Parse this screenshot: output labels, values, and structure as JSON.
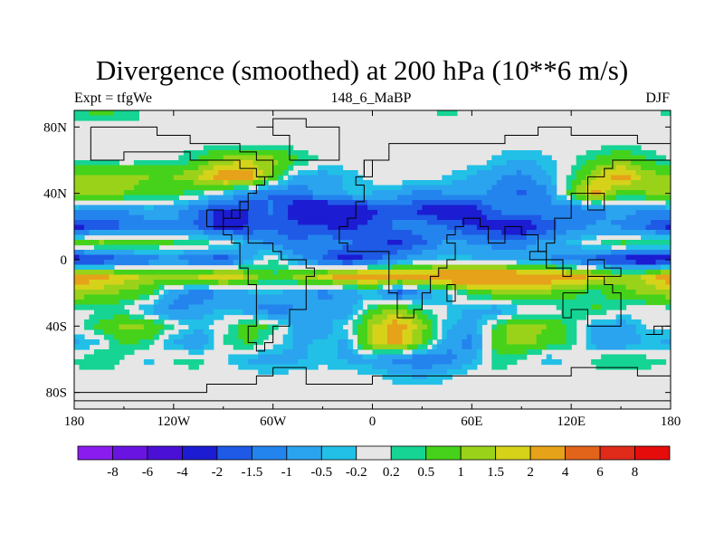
{
  "chart_data": {
    "type": "heatmap",
    "title": "Divergence (smoothed) at 200 hPa (10**6 m/s)",
    "subtitle_left": "Expt = tfgWe",
    "subtitle_center": "148_6_MaBP",
    "subtitle_right": "DJF",
    "x_ticks": [
      "180",
      "120W",
      "60W",
      "0",
      "60E",
      "120E",
      "180"
    ],
    "x_tick_values": [
      -180,
      -120,
      -60,
      0,
      60,
      120,
      180
    ],
    "y_ticks": [
      "80N",
      "40N",
      "0",
      "40S",
      "80S"
    ],
    "y_tick_values": [
      80,
      40,
      0,
      -40,
      -80
    ],
    "xlim": [
      -180,
      180
    ],
    "ylim": [
      -90,
      90
    ],
    "colorbar_labels": [
      "-8",
      "-6",
      "-4",
      "-2",
      "-1.5",
      "-1",
      "-0.5",
      "-0.2",
      "0.2",
      "0.5",
      "1",
      "1.5",
      "2",
      "4",
      "6",
      "8"
    ],
    "colorbar_boundaries": [
      -8,
      -6,
      -4,
      -2,
      -1.5,
      -1,
      -0.5,
      -0.2,
      0.2,
      0.5,
      1,
      1.5,
      2,
      4,
      6,
      8
    ],
    "colorbar_colors": [
      "#8a1cf0",
      "#6a14e2",
      "#4a10d6",
      "#1c1cd2",
      "#1e5ae6",
      "#2484ee",
      "#2aa4ee",
      "#22c0e6",
      "#e6e6e6",
      "#16d494",
      "#46d21a",
      "#9ad21a",
      "#d6d21a",
      "#e6a218",
      "#e2641a",
      "#e02a1a",
      "#e60c0c"
    ],
    "rows_lat_step_deg": 10,
    "rows_lon_step_deg": 15,
    "values_north_to_south": [
      [
        0.3,
        0.8,
        0.4,
        0.1,
        -0.2,
        0.1,
        0.2,
        0.1,
        0.0,
        0.1,
        0.2,
        0.1,
        0.0,
        -0.1,
        0.1,
        0.3,
        0.1,
        -0.1,
        0.0,
        0.1,
        0.2,
        0.1,
        0.0,
        0.1,
        0.3
      ],
      [
        0.1,
        0.0,
        0.1,
        0.2,
        0.1,
        0.0,
        0.1,
        0.0,
        0.1,
        0.0,
        0.1,
        0.0,
        0.1,
        0.0,
        0.1,
        0.0,
        0.1,
        0.0,
        0.1,
        0.0,
        0.1,
        0.0,
        0.1,
        0.0,
        0.1
      ],
      [
        0.0,
        0.1,
        0.0,
        -0.1,
        0.1,
        0.0,
        0.1,
        0.0,
        0.1,
        0.0,
        -0.1,
        0.0,
        0.1,
        0.0,
        -0.1,
        0.0,
        0.1,
        0.0,
        0.1,
        0.0,
        -0.1,
        0.0,
        0.1,
        0.0,
        0.0
      ],
      [
        0.1,
        0.1,
        0.0,
        0.1,
        0.1,
        0.6,
        1.2,
        1.5,
        1.2,
        0.6,
        0.1,
        0.0,
        0.1,
        0.0,
        0.1,
        0.0,
        0.1,
        -0.3,
        -0.6,
        -0.3,
        0.1,
        0.6,
        1.0,
        0.6,
        0.1
      ],
      [
        1.0,
        1.3,
        1.2,
        1.0,
        1.0,
        1.5,
        2.6,
        2.4,
        0.8,
        -0.6,
        -0.8,
        -0.4,
        0.0,
        0.2,
        0.1,
        -0.2,
        -0.6,
        -0.9,
        -1.2,
        -0.6,
        0.3,
        1.5,
        2.4,
        1.3,
        1.0
      ],
      [
        1.5,
        1.2,
        1.0,
        0.8,
        0.6,
        0.2,
        -0.4,
        -1.0,
        -1.6,
        -1.4,
        -0.8,
        -0.5,
        -0.5,
        -0.8,
        -1.2,
        -1.0,
        -0.8,
        -1.2,
        -1.6,
        -1.2,
        0.8,
        2.2,
        0.6,
        1.0,
        1.5
      ],
      [
        -0.8,
        -1.2,
        -1.0,
        -0.7,
        -0.8,
        -1.5,
        -2.2,
        -2.0,
        -1.4,
        -2.6,
        -3.2,
        -2.6,
        -2.2,
        -1.6,
        -2.2,
        -2.8,
        -2.4,
        -1.4,
        -1.0,
        -1.2,
        -1.5,
        -1.2,
        -0.8,
        -1.0,
        -0.8
      ],
      [
        -2.3,
        -1.8,
        -1.6,
        -1.2,
        -1.1,
        -1.6,
        -2.4,
        -2.0,
        -1.6,
        -1.8,
        -2.0,
        -2.2,
        -1.8,
        -1.4,
        -1.2,
        -1.5,
        -2.0,
        -2.4,
        -2.6,
        -1.8,
        -1.2,
        -0.9,
        -1.1,
        -1.6,
        -2.3
      ],
      [
        0.6,
        1.2,
        1.0,
        0.8,
        0.6,
        0.4,
        0.2,
        -0.6,
        -1.2,
        -1.5,
        -1.0,
        -1.4,
        -1.8,
        -2.2,
        -1.6,
        -0.8,
        -1.0,
        -1.2,
        -1.1,
        -0.8,
        -0.4,
        0.2,
        0.6,
        0.5,
        0.6
      ],
      [
        -2.6,
        -2.2,
        -1.8,
        -1.4,
        -1.2,
        -1.6,
        -2.0,
        -0.6,
        0.3,
        -0.8,
        -1.6,
        -2.4,
        -1.8,
        -1.0,
        -0.5,
        -0.3,
        -0.4,
        -0.6,
        -0.8,
        -1.0,
        -1.4,
        -1.8,
        -2.4,
        -2.8,
        -2.6
      ],
      [
        2.6,
        2.2,
        1.8,
        1.4,
        1.2,
        1.6,
        2.2,
        1.5,
        0.5,
        1.2,
        1.8,
        2.6,
        2.8,
        2.4,
        2.6,
        3.0,
        3.4,
        3.2,
        2.8,
        2.6,
        2.4,
        1.8,
        1.2,
        1.6,
        2.6
      ],
      [
        1.4,
        1.2,
        0.9,
        0.6,
        -0.8,
        -1.4,
        -1.0,
        -0.6,
        -0.4,
        -0.8,
        -1.2,
        -0.9,
        -0.4,
        -1.8,
        -1.0,
        -0.3,
        0.6,
        1.0,
        1.2,
        1.0,
        0.6,
        0.3,
        0.8,
        1.1,
        1.4
      ],
      [
        0.0,
        0.2,
        0.1,
        -0.6,
        -1.2,
        -0.8,
        -0.4,
        -0.8,
        -1.4,
        -1.0,
        -0.6,
        -0.9,
        0.6,
        1.2,
        0.4,
        -0.2,
        -0.6,
        -0.8,
        -0.4,
        -0.1,
        0.3,
        0.6,
        0.1,
        0.0,
        0.0
      ],
      [
        0.0,
        0.6,
        1.2,
        1.0,
        0.2,
        -0.4,
        0.1,
        0.8,
        0.4,
        -0.6,
        -0.8,
        0.0,
        1.4,
        2.4,
        1.2,
        -0.4,
        -0.8,
        0.6,
        1.4,
        1.0,
        0.4,
        -0.6,
        -0.8,
        -0.2,
        0.0
      ],
      [
        -0.6,
        -0.2,
        0.6,
        0.4,
        -0.6,
        -1.0,
        0.2,
        0.6,
        0.0,
        -0.6,
        -0.4,
        -0.6,
        1.6,
        2.2,
        1.0,
        -0.8,
        -1.2,
        0.8,
        1.2,
        0.8,
        0.4,
        -0.8,
        -1.0,
        -0.4,
        -0.6
      ],
      [
        0.2,
        0.6,
        0.1,
        -0.3,
        0.2,
        0.4,
        -0.2,
        -0.6,
        -0.8,
        -0.6,
        -0.4,
        -0.6,
        -0.8,
        -1.2,
        -1.6,
        -1.2,
        -0.6,
        0.4,
        0.2,
        -0.4,
        -0.1,
        0.3,
        0.6,
        0.3,
        0.2
      ],
      [
        0.1,
        0.0,
        0.1,
        0.0,
        0.1,
        0.0,
        0.1,
        0.0,
        -0.1,
        0.0,
        0.1,
        0.0,
        -0.1,
        -0.4,
        -0.6,
        -0.3,
        0.0,
        0.1,
        0.0,
        0.1,
        0.0,
        0.1,
        0.0,
        0.1,
        0.1
      ],
      [
        0.0,
        0.1,
        0.0,
        0.1,
        0.0,
        0.1,
        0.0,
        0.1,
        0.0,
        0.1,
        0.0,
        0.1,
        0.0,
        0.1,
        0.0,
        0.1,
        0.0,
        0.1,
        0.0,
        0.1,
        0.0,
        0.1,
        0.0,
        0.1,
        0.0
      ],
      [
        0.1,
        0.0,
        0.1,
        0.0,
        0.1,
        0.0,
        0.1,
        0.0,
        0.1,
        0.0,
        0.1,
        0.0,
        0.1,
        0.0,
        0.1,
        0.0,
        0.1,
        0.0,
        0.1,
        0.0,
        0.1,
        0.0,
        0.1,
        0.0,
        0.1
      ]
    ],
    "coastline_lonlat": [
      [
        [
          -170,
          80
        ],
        [
          -140,
          78
        ],
        [
          -130,
          74
        ],
        [
          -110,
          70
        ],
        [
          -95,
          72
        ],
        [
          -82,
          66
        ],
        [
          -70,
          62
        ],
        [
          -62,
          56
        ],
        [
          -58,
          48
        ],
        [
          -66,
          44
        ],
        [
          -72,
          40
        ],
        [
          -76,
          34
        ],
        [
          -80,
          28
        ],
        [
          -82,
          24
        ],
        [
          -88,
          30
        ],
        [
          -96,
          28
        ],
        [
          -98,
          20
        ],
        [
          -92,
          16
        ],
        [
          -84,
          10
        ],
        [
          -78,
          8
        ],
        [
          -80,
          2
        ],
        [
          -80,
          -6
        ],
        [
          -76,
          -14
        ],
        [
          -72,
          -20
        ],
        [
          -70,
          -30
        ],
        [
          -72,
          -40
        ],
        [
          -74,
          -50
        ],
        [
          -68,
          -56
        ],
        [
          -64,
          -48
        ],
        [
          -58,
          -38
        ],
        [
          -50,
          -30
        ],
        [
          -42,
          -22
        ],
        [
          -38,
          -12
        ],
        [
          -36,
          -6
        ],
        [
          -42,
          -2
        ],
        [
          -50,
          0
        ],
        [
          -56,
          6
        ],
        [
          -62,
          10
        ],
        [
          -72,
          12
        ],
        [
          -76,
          18
        ],
        [
          -86,
          20
        ],
        [
          -90,
          26
        ],
        [
          -84,
          30
        ],
        [
          -80,
          32
        ],
        [
          -76,
          40
        ],
        [
          -70,
          44
        ],
        [
          -64,
          50
        ],
        [
          -72,
          56
        ],
        [
          -82,
          58
        ],
        [
          -92,
          60
        ],
        [
          -110,
          66
        ],
        [
          -130,
          66
        ],
        [
          -150,
          62
        ],
        [
          -164,
          60
        ],
        [
          -168,
          66
        ],
        [
          -170,
          80
        ]
      ],
      [
        [
          -10,
          36
        ],
        [
          -6,
          44
        ],
        [
          -8,
          52
        ],
        [
          -4,
          58
        ],
        [
          6,
          62
        ],
        [
          12,
          68
        ],
        [
          24,
          72
        ],
        [
          40,
          70
        ],
        [
          60,
          72
        ],
        [
          80,
          74
        ],
        [
          100,
          78
        ],
        [
          120,
          74
        ],
        [
          140,
          74
        ],
        [
          160,
          70
        ],
        [
          178,
          68
        ],
        [
          178,
          62
        ],
        [
          160,
          58
        ],
        [
          146,
          56
        ],
        [
          140,
          48
        ],
        [
          132,
          42
        ],
        [
          124,
          40
        ],
        [
          122,
          30
        ],
        [
          118,
          24
        ],
        [
          110,
          20
        ],
        [
          108,
          12
        ],
        [
          104,
          4
        ],
        [
          100,
          8
        ],
        [
          98,
          16
        ],
        [
          92,
          22
        ],
        [
          86,
          20
        ],
        [
          80,
          12
        ],
        [
          76,
          8
        ],
        [
          72,
          20
        ],
        [
          66,
          24
        ],
        [
          58,
          24
        ],
        [
          56,
          20
        ],
        [
          52,
          16
        ],
        [
          44,
          12
        ],
        [
          50,
          10
        ],
        [
          52,
          2
        ],
        [
          44,
          -4
        ],
        [
          40,
          -12
        ],
        [
          36,
          -22
        ],
        [
          32,
          -30
        ],
        [
          26,
          -34
        ],
        [
          18,
          -34
        ],
        [
          14,
          -22
        ],
        [
          12,
          -10
        ],
        [
          10,
          0
        ],
        [
          8,
          4
        ],
        [
          0,
          6
        ],
        [
          -8,
          4
        ],
        [
          -16,
          10
        ],
        [
          -18,
          18
        ],
        [
          -16,
          24
        ],
        [
          -10,
          30
        ],
        [
          -10,
          36
        ]
      ],
      [
        [
          114,
          -22
        ],
        [
          122,
          -18
        ],
        [
          132,
          -12
        ],
        [
          140,
          -16
        ],
        [
          146,
          -20
        ],
        [
          152,
          -28
        ],
        [
          150,
          -38
        ],
        [
          140,
          -38
        ],
        [
          130,
          -32
        ],
        [
          118,
          -34
        ],
        [
          114,
          -26
        ],
        [
          114,
          -22
        ]
      ],
      [
        [
          -60,
          -64
        ],
        [
          -40,
          -74
        ],
        [
          0,
          -70
        ],
        [
          40,
          -68
        ],
        [
          80,
          -68
        ],
        [
          120,
          -66
        ],
        [
          160,
          -70
        ],
        [
          180,
          -78
        ],
        [
          180,
          -86
        ],
        [
          -180,
          -86
        ],
        [
          -180,
          -78
        ],
        [
          -150,
          -78
        ],
        [
          -100,
          -74
        ],
        [
          -70,
          -70
        ],
        [
          -60,
          -64
        ]
      ],
      [
        [
          -50,
          60
        ],
        [
          -42,
          60
        ],
        [
          -22,
          70
        ],
        [
          -20,
          80
        ],
        [
          -40,
          84
        ],
        [
          -60,
          82
        ],
        [
          -70,
          78
        ],
        [
          -58,
          74
        ],
        [
          -52,
          68
        ],
        [
          -50,
          60
        ]
      ],
      [
        [
          44,
          -16
        ],
        [
          50,
          -14
        ],
        [
          50,
          -24
        ],
        [
          46,
          -26
        ],
        [
          44,
          -16
        ]
      ],
      [
        [
          -6,
          50
        ],
        [
          2,
          52
        ],
        [
          0,
          58
        ],
        [
          -6,
          58
        ],
        [
          -6,
          50
        ]
      ],
      [
        [
          130,
          32
        ],
        [
          140,
          36
        ],
        [
          142,
          42
        ],
        [
          136,
          38
        ],
        [
          130,
          32
        ]
      ],
      [
        [
          96,
          4
        ],
        [
          106,
          -6
        ],
        [
          114,
          -8
        ],
        [
          120,
          -4
        ],
        [
          116,
          2
        ],
        [
          104,
          2
        ],
        [
          96,
          4
        ]
      ],
      [
        [
          132,
          -2
        ],
        [
          140,
          -4
        ],
        [
          150,
          -8
        ],
        [
          146,
          -10
        ],
        [
          138,
          -8
        ],
        [
          132,
          -2
        ]
      ],
      [
        [
          166,
          -44
        ],
        [
          174,
          -38
        ],
        [
          178,
          -40
        ],
        [
          170,
          -46
        ],
        [
          166,
          -44
        ]
      ]
    ]
  }
}
